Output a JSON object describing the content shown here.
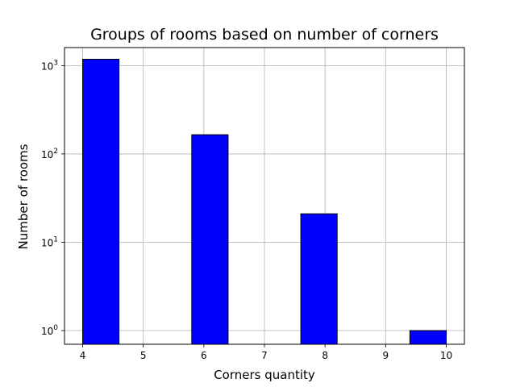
{
  "chart_data": {
    "type": "bar",
    "title": "Groups of rooms based on number of corners",
    "xlabel": "Corners quantity",
    "ylabel": "Number of rooms",
    "yscale": "log",
    "grid": true,
    "bar_color": "#0000ff",
    "edge_color": "#000000",
    "bars": [
      {
        "x0": 4.0,
        "x1": 4.6,
        "value": 1180
      },
      {
        "x0": 5.8,
        "x1": 6.4,
        "value": 165
      },
      {
        "x0": 7.6,
        "x1": 8.2,
        "value": 21
      },
      {
        "x0": 9.4,
        "x1": 10.0,
        "value": 1
      }
    ],
    "xlim": [
      3.7,
      10.3
    ],
    "ylim": [
      0.7,
      1600
    ],
    "x_ticks": [
      4,
      5,
      6,
      7,
      8,
      9,
      10
    ],
    "y_ticks": [
      {
        "value": 1,
        "base": "10",
        "exp": "0"
      },
      {
        "value": 10,
        "base": "10",
        "exp": "1"
      },
      {
        "value": 100,
        "base": "10",
        "exp": "2"
      },
      {
        "value": 1000,
        "base": "10",
        "exp": "3"
      }
    ]
  }
}
